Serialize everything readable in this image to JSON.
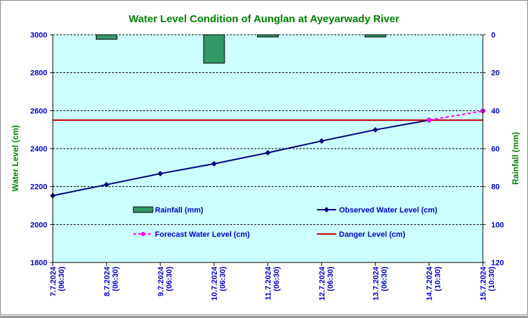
{
  "chart_data": {
    "type": "line",
    "title": "Water Level Condition of Aunglan at Ayeyarwady River",
    "ylabel": "Water Level (cm)",
    "y2label": "Rainfall (mm)",
    "ylim": [
      1800,
      3000
    ],
    "yticks": [
      1800,
      2000,
      2200,
      2400,
      2600,
      2800,
      3000
    ],
    "y2lim": [
      0,
      120
    ],
    "y2ticks": [
      0,
      20,
      40,
      60,
      80,
      100,
      120
    ],
    "y2_inverted": true,
    "categories": [
      [
        "7.7.2024",
        "(06:30)"
      ],
      [
        "8.7.2024",
        "(06:30)"
      ],
      [
        "9.7.2024",
        "(06:30)"
      ],
      [
        "10.7.2024",
        "(06:30)"
      ],
      [
        "11.7.2024",
        "(06:30)"
      ],
      [
        "12.7.2024",
        "(06:30)"
      ],
      [
        "13.7.2024",
        "(06:30)"
      ],
      [
        "14.7.2024",
        "(10:30)"
      ],
      [
        "15.7.2024",
        "(10:30)"
      ]
    ],
    "series": [
      {
        "name": "Rainfall (mm)",
        "type": "bar",
        "axis": "right",
        "color": "#339966",
        "values": [
          0,
          2.4,
          0,
          15,
          1.2,
          0,
          1.2,
          0,
          null
        ]
      },
      {
        "name": "Observed Water Level (cm)",
        "type": "line",
        "color": "#000080",
        "values": [
          2152,
          2210,
          2268,
          2320,
          2378,
          2440,
          2499,
          2550,
          null
        ]
      },
      {
        "name": "Forecast Water Level (cm)",
        "type": "line",
        "dashed": true,
        "color": "#FF00FF",
        "values": [
          null,
          null,
          null,
          null,
          null,
          null,
          null,
          2550,
          2598
        ]
      },
      {
        "name": "Danger Level (cm)",
        "type": "hline",
        "color": "#CC0000",
        "value": 2550
      }
    ],
    "grid": true,
    "legend": "inside-bottom",
    "colors": {
      "plot_bg": "#CCFFFF",
      "title": "#008000",
      "axis_text": "#0000CC"
    }
  }
}
